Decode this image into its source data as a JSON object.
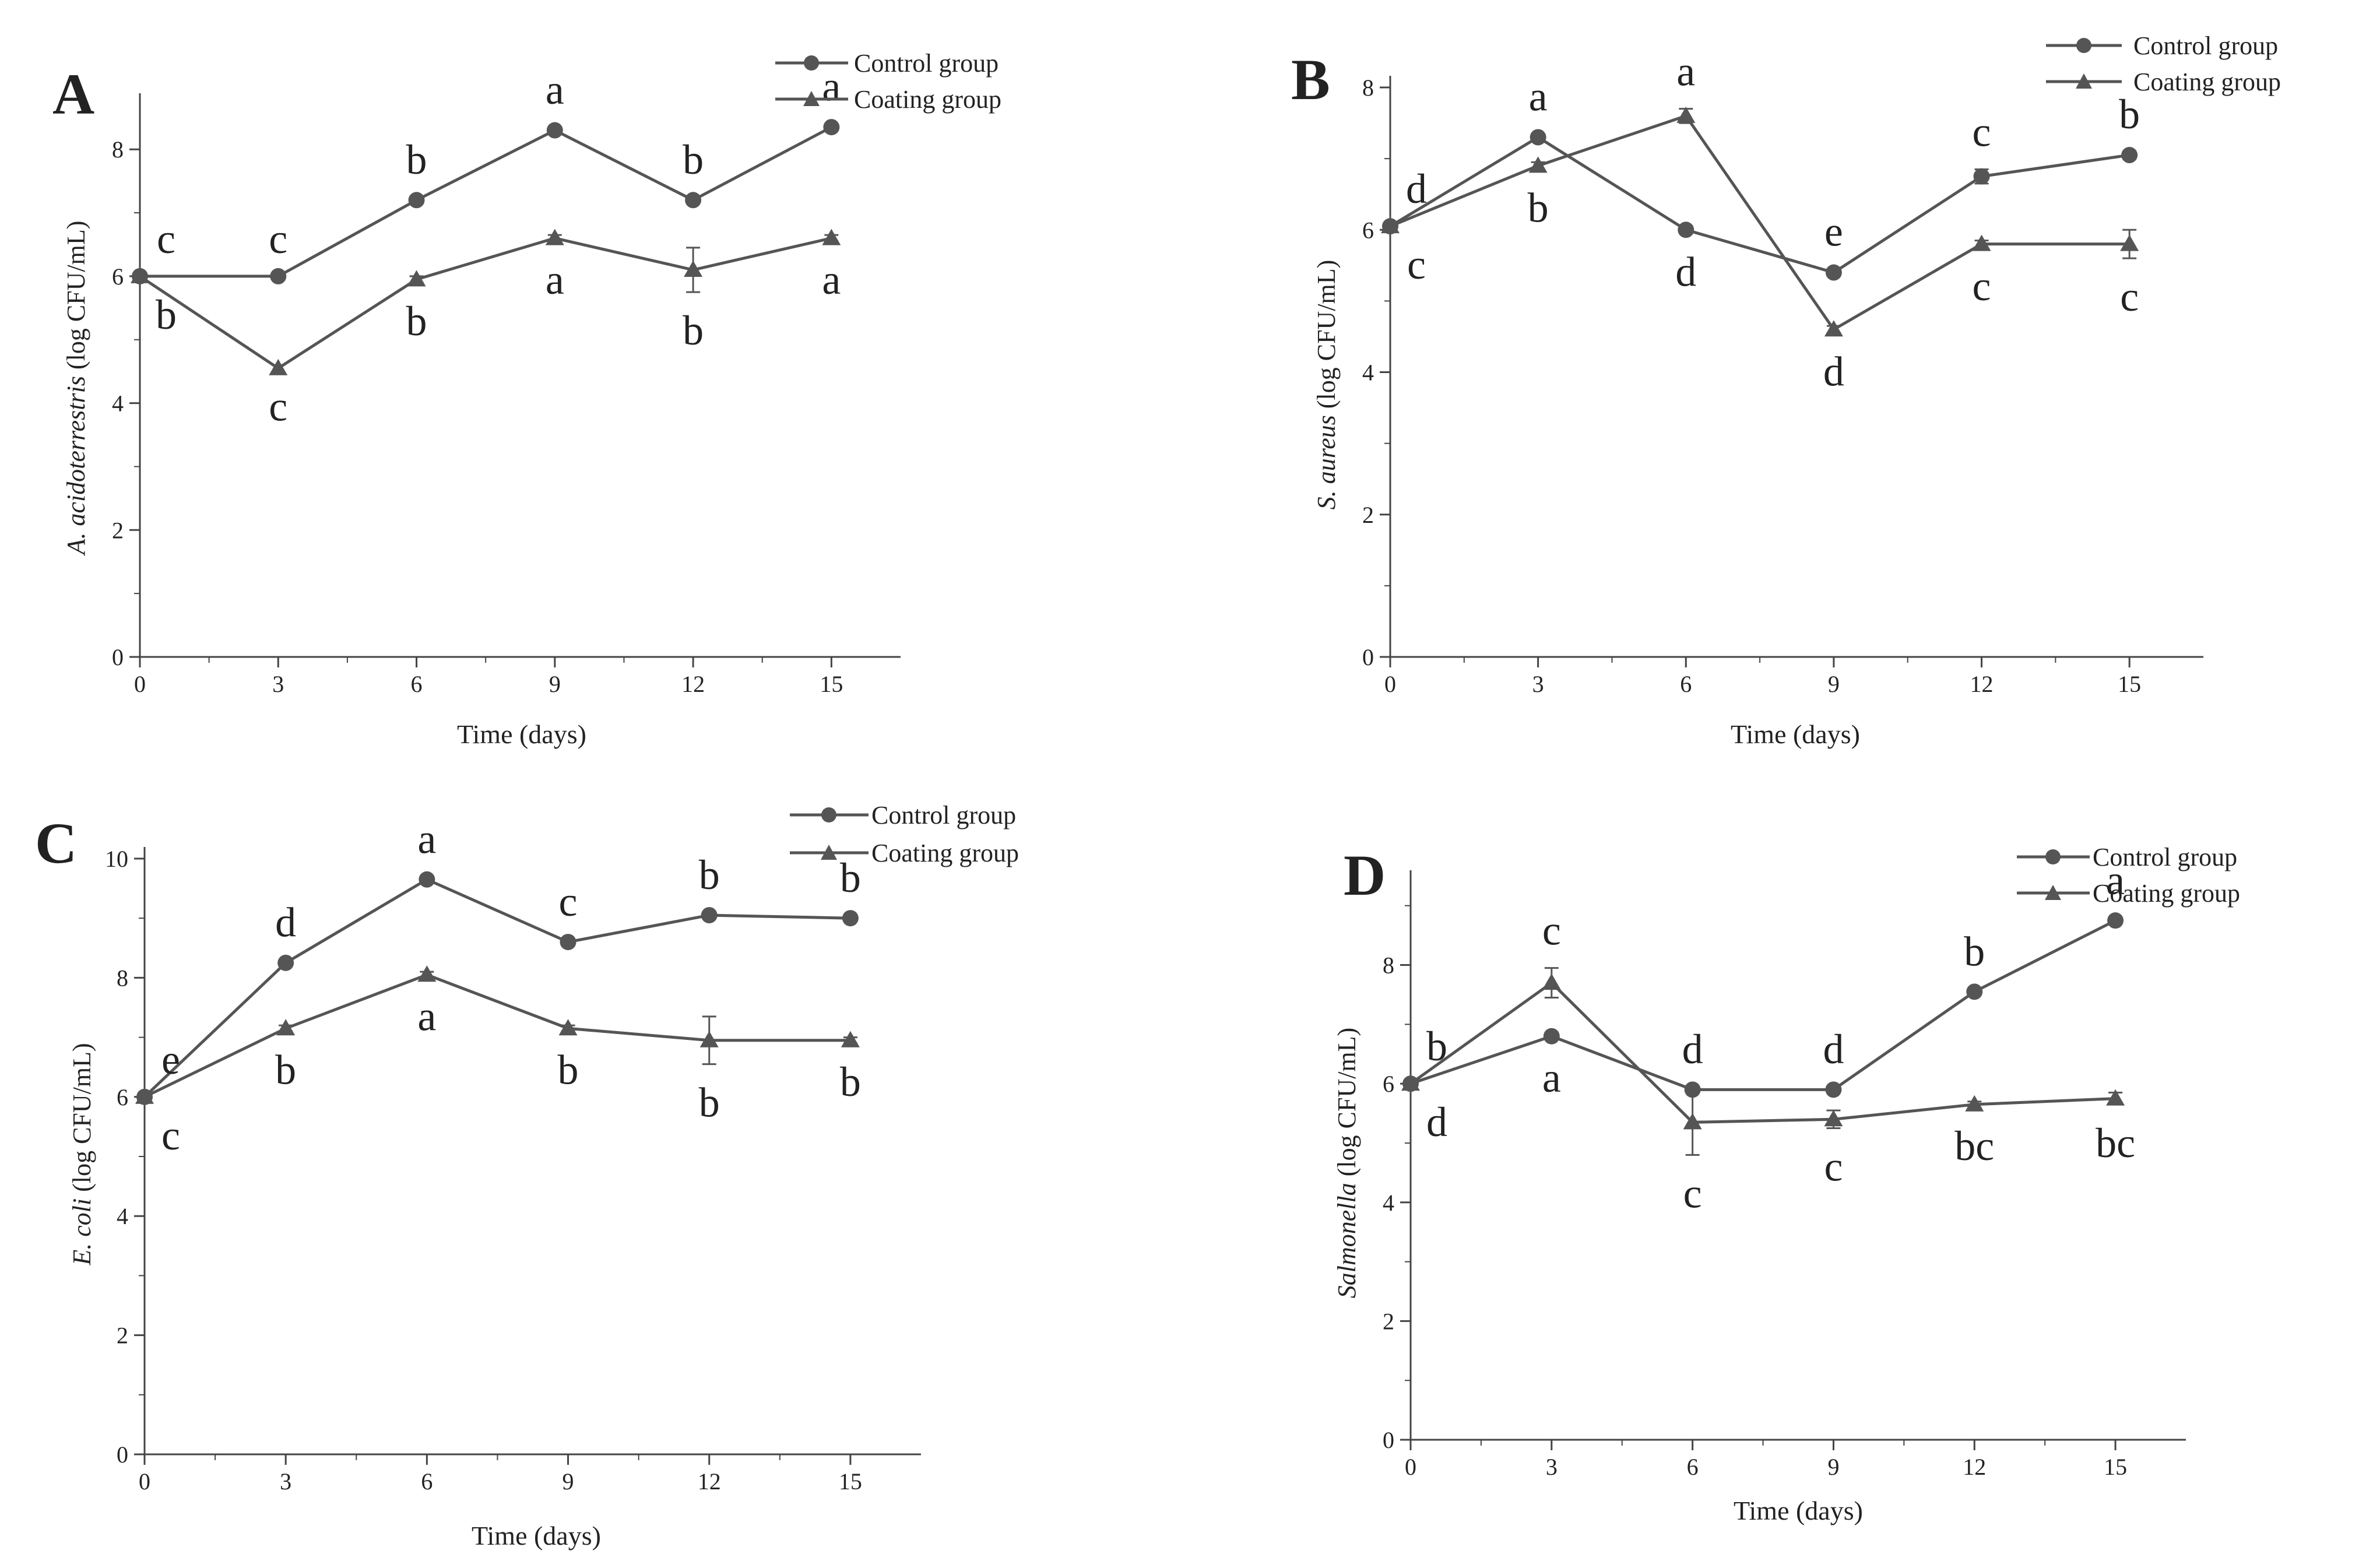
{
  "chart_data": [
    {
      "panel": "A",
      "type": "line",
      "xlabel": "Time (days)",
      "ylabel_italic": "A. acidoterrestris",
      "ylabel_rest": " (log CFU/mL)",
      "x": [
        0,
        3,
        6,
        9,
        12,
        15
      ],
      "xticks": [
        0,
        3,
        6,
        9,
        12,
        15
      ],
      "yticks": [
        0,
        2,
        4,
        6,
        8
      ],
      "ylim": [
        0,
        8.7
      ],
      "legend": [
        "Control group",
        "Coating group"
      ],
      "series": [
        {
          "name": "Control group",
          "marker": "circle",
          "values": [
            6.0,
            6.0,
            7.2,
            8.3,
            7.2,
            8.35
          ],
          "errors": [
            0,
            0,
            0.05,
            0.05,
            0.05,
            0.05
          ],
          "letters": [
            "c",
            "c",
            "b",
            "a",
            "b",
            "a"
          ]
        },
        {
          "name": "Coating group",
          "marker": "triangle",
          "values": [
            6.0,
            4.55,
            5.95,
            6.6,
            6.1,
            6.6
          ],
          "errors": [
            0,
            0,
            0.05,
            0.05,
            0.35,
            0.05
          ],
          "letters": [
            "b",
            "c",
            "b",
            "a",
            "b",
            "a"
          ]
        }
      ]
    },
    {
      "panel": "B",
      "type": "line",
      "xlabel": "Time (days)",
      "ylabel_italic": "S. aureus",
      "ylabel_rest": " (log CFU/mL)",
      "x": [
        0,
        3,
        6,
        9,
        12,
        15
      ],
      "xticks": [
        0,
        3,
        6,
        9,
        12,
        15
      ],
      "yticks": [
        0,
        2,
        4,
        6,
        8
      ],
      "ylim": [
        0,
        8
      ],
      "legend": [
        "Control group",
        "Coating group"
      ],
      "series": [
        {
          "name": "Control group",
          "marker": "circle",
          "values": [
            6.05,
            7.3,
            6.0,
            5.4,
            6.75,
            7.05
          ],
          "errors": [
            0,
            0.05,
            0.05,
            0.05,
            0.1,
            0.05
          ],
          "letters": [
            "d",
            "a",
            "d",
            "e",
            "c",
            "b"
          ]
        },
        {
          "name": "Coating group",
          "marker": "triangle",
          "values": [
            6.05,
            6.9,
            7.6,
            4.6,
            5.8,
            5.8
          ],
          "errors": [
            0,
            0.05,
            0.1,
            0.05,
            0.05,
            0.2
          ],
          "letters": [
            "c",
            "b",
            "a",
            "d",
            "c",
            "c"
          ]
        }
      ]
    },
    {
      "panel": "C",
      "type": "line",
      "xlabel": "Time (days)",
      "ylabel_italic": "E. coli",
      "ylabel_rest": " (log CFU/mL)",
      "x": [
        0,
        3,
        6,
        9,
        12,
        15
      ],
      "xticks": [
        0,
        3,
        6,
        9,
        12,
        15
      ],
      "yticks": [
        0,
        2,
        4,
        6,
        8,
        10
      ],
      "ylim": [
        0,
        10
      ],
      "legend": [
        "Control group",
        "Coating group"
      ],
      "series": [
        {
          "name": "Control group",
          "marker": "circle",
          "values": [
            6.0,
            8.25,
            9.65,
            8.6,
            9.05,
            9.0
          ],
          "errors": [
            0,
            0.05,
            0.05,
            0.05,
            0.05,
            0.05
          ],
          "letters": [
            "e",
            "d",
            "a",
            "c",
            "b",
            "b"
          ]
        },
        {
          "name": "Coating group",
          "marker": "triangle",
          "values": [
            6.0,
            7.15,
            8.05,
            7.15,
            6.95,
            6.95
          ],
          "errors": [
            0,
            0.05,
            0.05,
            0.05,
            0.4,
            0.05
          ],
          "letters": [
            "c",
            "b",
            "a",
            "b",
            "b",
            "b"
          ]
        }
      ]
    },
    {
      "panel": "D",
      "type": "line",
      "xlabel": "Time (days)",
      "ylabel_italic": "Salmonella",
      "ylabel_rest": " (log CFU/mL)",
      "x": [
        0,
        3,
        6,
        9,
        12,
        15
      ],
      "xticks": [
        0,
        3,
        6,
        9,
        12,
        15
      ],
      "yticks": [
        0,
        2,
        4,
        6,
        8
      ],
      "ylim": [
        0,
        9.4
      ],
      "legend": [
        "Control group",
        "Coating group"
      ],
      "series": [
        {
          "name": "Control group",
          "marker": "circle",
          "values": [
            6.0,
            6.8,
            5.9,
            5.9,
            7.55,
            8.75
          ],
          "errors": [
            0,
            0.05,
            0.05,
            0.05,
            0.05,
            0.05
          ],
          "letters": [
            "b",
            "a",
            "d",
            "d",
            "b",
            "a"
          ]
        },
        {
          "name": "Coating group",
          "marker": "triangle",
          "values": [
            6.0,
            7.7,
            5.35,
            5.4,
            5.65,
            5.75
          ],
          "errors": [
            0,
            0.25,
            0.55,
            0.15,
            0.05,
            0.1
          ],
          "letters": [
            "d",
            "c",
            "c",
            "c",
            "bc",
            "bc"
          ]
        }
      ]
    }
  ]
}
